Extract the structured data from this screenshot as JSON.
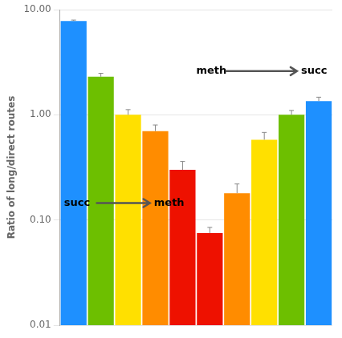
{
  "chart_data": {
    "type": "bar",
    "ylabel": "Ratio of long/direct routes",
    "categories": [
      null,
      null,
      null,
      null,
      null,
      null,
      null,
      null,
      null,
      null
    ],
    "values": [
      7.8,
      2.3,
      1.0,
      0.7,
      0.3,
      0.075,
      0.18,
      0.58,
      1.0,
      1.35
    ],
    "errors": [
      0.15,
      0.18,
      0.12,
      0.1,
      0.06,
      0.01,
      0.04,
      0.1,
      0.1,
      0.12
    ],
    "colors": [
      "#1E90FF",
      "#6DBF00",
      "#FFE000",
      "#FF8C00",
      "#EE1100",
      "#EE1100",
      "#FF8C00",
      "#FFE000",
      "#6DBF00",
      "#1E90FF"
    ],
    "ylim": [
      0.01,
      10.0
    ],
    "yticks": [
      0.01,
      {
        "value": 0.1,
        "label": "0.10"
      },
      {
        "value": 1.0,
        "label": "1.00"
      },
      {
        "value": 10.0,
        "label": "10.00"
      }
    ],
    "log": "y",
    "grid": true,
    "tick_labels": "y",
    "annotations": [
      {
        "from": "succ",
        "to": "meth"
      },
      {
        "from": "meth",
        "to": "succ"
      }
    ]
  }
}
